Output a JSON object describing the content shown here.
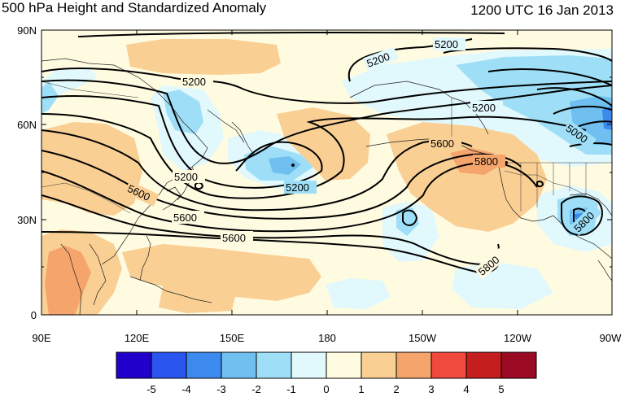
{
  "title": "500 hPa Height and Standardized Anomaly",
  "timestamp": "1200 UTC 16 Jan 2013",
  "map": {
    "lat_labels": [
      "90N",
      "60N",
      "30N",
      "0"
    ],
    "lon_labels": [
      "90E",
      "120E",
      "150E",
      "180",
      "150W",
      "120W",
      "90W"
    ],
    "contour_labels": [
      "5200",
      "5200",
      "5200",
      "5200",
      "5200",
      "5200",
      "5600",
      "5600",
      "5600",
      "5600",
      "5800",
      "5800",
      "5800",
      "5000"
    ]
  },
  "colorbar": {
    "labels": [
      "-5",
      "-4",
      "-3",
      "-2",
      "-1",
      "0",
      "1",
      "2",
      "3",
      "4",
      "5"
    ],
    "colors": [
      "#2200cc",
      "#2a55ee",
      "#3d8aee",
      "#6fbff0",
      "#9edff7",
      "#e1f8fc",
      "#fffbe1",
      "#f9cf94",
      "#f5a46c",
      "#f04a3e",
      "#c41e1e",
      "#9a0a22"
    ]
  }
}
